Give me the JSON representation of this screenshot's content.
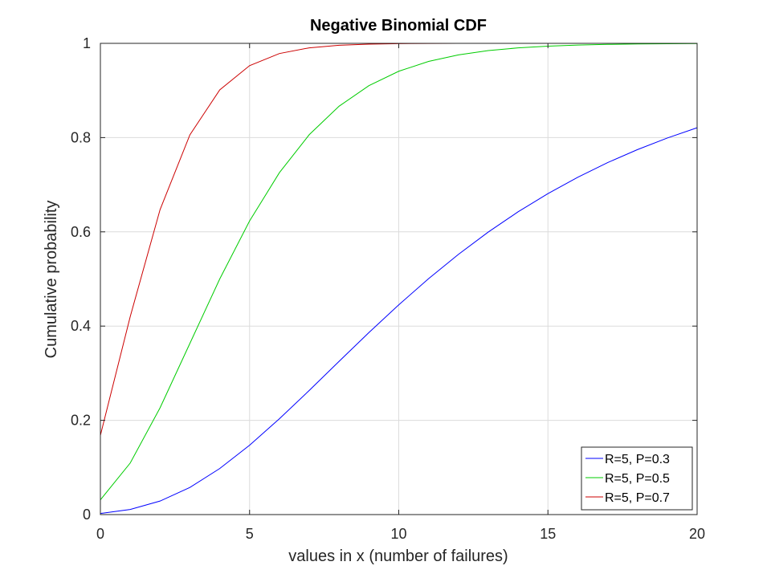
{
  "chart_data": {
    "type": "line",
    "title": "Negative Binomial CDF",
    "xlabel": "values in x (number of failures)",
    "ylabel": "Cumulative probability",
    "xlim": [
      0,
      20
    ],
    "ylim": [
      0,
      1
    ],
    "xticks": [
      0,
      5,
      10,
      15,
      20
    ],
    "yticks": [
      0,
      0.2,
      0.4,
      0.6,
      0.8,
      1
    ],
    "xtick_labels": [
      "0",
      "5",
      "10",
      "15",
      "20"
    ],
    "ytick_labels": [
      "0",
      "0.2",
      "0.4",
      "0.6",
      "0.8",
      "1"
    ],
    "grid": true,
    "legend_position": "bottom-right",
    "x": [
      0,
      1,
      2,
      3,
      4,
      5,
      6,
      7,
      8,
      9,
      10,
      11,
      12,
      13,
      14,
      15,
      16,
      17,
      18,
      19,
      20
    ],
    "series": [
      {
        "name": "R=5, P=0.3",
        "color": "#0000ff",
        "values": [
          0.0024,
          0.0109,
          0.0287,
          0.0576,
          0.0977,
          0.1471,
          0.2033,
          0.2634,
          0.3252,
          0.3863,
          0.4451,
          0.5007,
          0.5522,
          0.5995,
          0.6425,
          0.6811,
          0.7159,
          0.7469,
          0.7745,
          0.7991,
          0.8209
        ]
      },
      {
        "name": "R=5, P=0.5",
        "color": "#00cc00",
        "values": [
          0.0313,
          0.1094,
          0.2266,
          0.3633,
          0.5,
          0.623,
          0.7256,
          0.8062,
          0.8666,
          0.9102,
          0.9408,
          0.9616,
          0.9755,
          0.9846,
          0.9904,
          0.9941,
          0.9964,
          0.9978,
          0.9987,
          0.9992,
          0.9995
        ]
      },
      {
        "name": "R=5, P=0.7",
        "color": "#cc0000",
        "values": [
          0.1681,
          0.4202,
          0.6471,
          0.8059,
          0.9012,
          0.9527,
          0.9784,
          0.9905,
          0.996,
          0.9984,
          0.9994,
          0.9998,
          0.9999,
          1.0,
          1.0,
          1.0,
          1.0,
          1.0,
          1.0,
          1.0,
          1.0
        ]
      }
    ]
  }
}
